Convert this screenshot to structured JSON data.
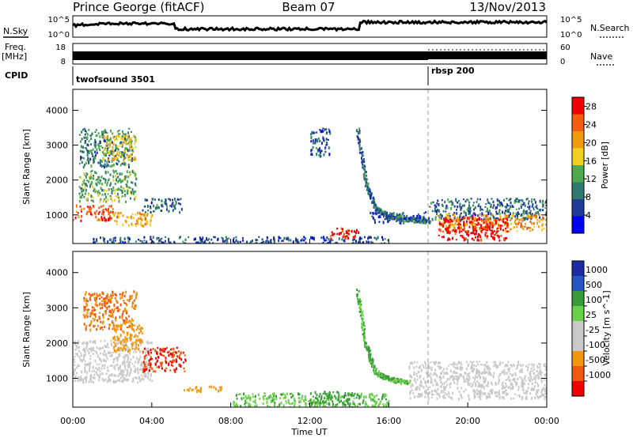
{
  "header": {
    "radar": "Prince George (fitACF)",
    "beam": "Beam 07",
    "date": "13/Nov/2013"
  },
  "strip_panels": {
    "nsky": {
      "label": "N.Sky",
      "ticks": [
        "10^5",
        "10^0"
      ],
      "right_ticks": [
        "10^5",
        "10^0"
      ],
      "right_label": "N.Search"
    },
    "freq": {
      "label_line1": "Freq.",
      "label_line2": "[MHz]",
      "ticks": [
        "18",
        "8"
      ],
      "right_ticks": [
        "60",
        "0"
      ],
      "right_label": "Nave"
    },
    "cpid": {
      "label": "CPID",
      "programs": [
        {
          "name": "twofsound 3501",
          "start_hour": 0
        },
        {
          "name": "rbsp 200",
          "start_hour": 18
        }
      ]
    }
  },
  "colors": {
    "power_scale": [
      "#0000ee",
      "#1e3c96",
      "#2e7a6e",
      "#4ea84e",
      "#f0d020",
      "#f09a10",
      "#f06010",
      "#ee0000"
    ],
    "velocity_scale": [
      "#ee0000",
      "#f05a10",
      "#f0960f",
      "#c9c9c9",
      "#c9c9c9",
      "#6ad04a",
      "#3a9a3a",
      "#2855c0",
      "#1a2ca0"
    ]
  },
  "chart_data": [
    {
      "type": "heatmap",
      "panel": "power",
      "ylabel": "Slant Range [km]",
      "y_ticks": [
        "1000",
        "2000",
        "3000",
        "4000"
      ],
      "ylim": [
        180,
        4600
      ],
      "xlim": [
        0,
        24
      ],
      "colorbar": {
        "label": "Power [dB]",
        "ticks": [
          "4",
          "8",
          "12",
          "16",
          "20",
          "24",
          "28"
        ],
        "range": [
          0,
          30
        ]
      },
      "regions": [
        {
          "x": [
            0.0,
            2.0
          ],
          "y": [
            850,
            1300
          ],
          "value": 25
        },
        {
          "x": [
            2.0,
            4.0
          ],
          "y": [
            700,
            1100
          ],
          "value": 20
        },
        {
          "x": [
            0.3,
            3.2
          ],
          "y": [
            1400,
            2300
          ],
          "value": 12
        },
        {
          "x": [
            0.3,
            3.0
          ],
          "y": [
            2400,
            3500
          ],
          "value": 10
        },
        {
          "x": [
            1.5,
            3.2
          ],
          "y": [
            2600,
            3300
          ],
          "value": 18
        },
        {
          "x": [
            3.5,
            5.5
          ],
          "y": [
            1100,
            1500
          ],
          "value": 8
        },
        {
          "x": [
            1.0,
            16.0
          ],
          "y": [
            200,
            400
          ],
          "value": 6
        },
        {
          "x": [
            13.0,
            14.5
          ],
          "y": [
            350,
            650
          ],
          "value": 27
        },
        {
          "x": [
            12.0,
            13.0
          ],
          "y": [
            2700,
            3500
          ],
          "value": 6
        },
        {
          "x": [
            15.0,
            18.0
          ],
          "y": [
            800,
            1100
          ],
          "value": 6
        },
        {
          "x": [
            18.0,
            24.0
          ],
          "y": [
            900,
            1500
          ],
          "value": 8
        },
        {
          "x": [
            18.5,
            24.0
          ],
          "y": [
            550,
            1050
          ],
          "value": 20
        },
        {
          "x": [
            18.5,
            22.0
          ],
          "y": [
            300,
            950
          ],
          "value": 29
        }
      ],
      "arcs": [
        {
          "name": "descending echo",
          "points": [
            [
              14.4,
              3500
            ],
            [
              14.8,
              2000
            ],
            [
              15.3,
              1200
            ],
            [
              16.0,
              1000
            ],
            [
              17.0,
              900
            ],
            [
              18.0,
              850
            ]
          ],
          "value": 8
        }
      ]
    },
    {
      "type": "heatmap",
      "panel": "velocity",
      "ylabel": "Slant Range [km]",
      "y_ticks": [
        "1000",
        "2000",
        "3000",
        "4000"
      ],
      "ylim": [
        180,
        4600
      ],
      "xlim": [
        0,
        24
      ],
      "xlabel": "Time UT",
      "x_ticks": [
        "00:00",
        "04:00",
        "08:00",
        "12:00",
        "16:00",
        "20:00",
        "00:00"
      ],
      "colorbar": {
        "label": "Velocity [m s^-1]",
        "ticks": [
          "1000",
          "500",
          "100",
          "25",
          "-25",
          "-100",
          "-500",
          "-1000"
        ]
      },
      "regions": [
        {
          "x": [
            0.0,
            4.0
          ],
          "y": [
            900,
            2100
          ],
          "value": 0
        },
        {
          "x": [
            0.5,
            3.2
          ],
          "y": [
            2400,
            3500
          ],
          "value": -300
        },
        {
          "x": [
            2.0,
            3.5
          ],
          "y": [
            1800,
            2600
          ],
          "value": -200
        },
        {
          "x": [
            3.5,
            5.7
          ],
          "y": [
            1200,
            1900
          ],
          "value": -700
        },
        {
          "x": [
            5.5,
            7.5
          ],
          "y": [
            650,
            800
          ],
          "value": -200
        },
        {
          "x": [
            8.0,
            16.0
          ],
          "y": [
            200,
            600
          ],
          "value": 50
        },
        {
          "x": [
            12.0,
            14.5
          ],
          "y": [
            300,
            650
          ],
          "value": 100
        },
        {
          "x": [
            17.0,
            24.0
          ],
          "y": [
            450,
            1500
          ],
          "value": 0
        }
      ],
      "arcs": [
        {
          "name": "descending echo",
          "points": [
            [
              14.4,
              3500
            ],
            [
              14.8,
              2000
            ],
            [
              15.3,
              1200
            ],
            [
              16.0,
              1000
            ],
            [
              17.0,
              900
            ]
          ],
          "value": 60
        }
      ]
    }
  ]
}
